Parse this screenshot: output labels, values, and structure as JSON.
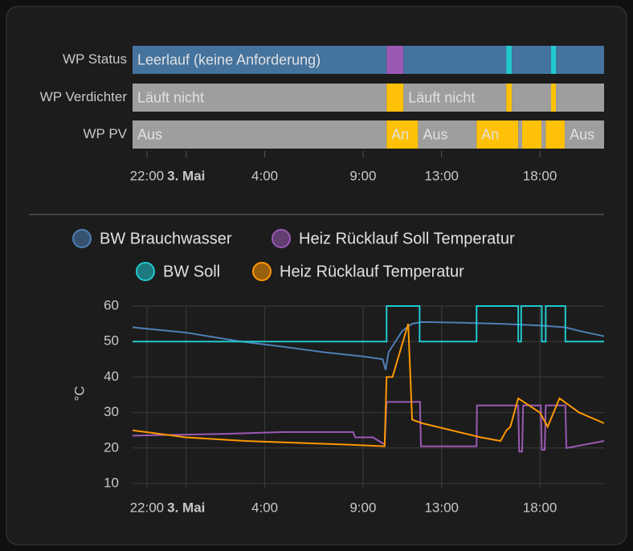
{
  "timeline": {
    "xlim": [
      -2.73,
      21.27
    ],
    "xticks": [
      {
        "value": -2,
        "label": "22:00"
      },
      {
        "value": 0,
        "label": "3. Mai"
      },
      {
        "value": 4,
        "label": "4:00"
      },
      {
        "value": 9,
        "label": "9:00"
      },
      {
        "value": 13,
        "label": "13:00"
      },
      {
        "value": 18,
        "label": "18:00"
      }
    ],
    "rows": [
      {
        "name": "WP Status",
        "segments": [
          {
            "start": -2.73,
            "end": 10.2,
            "label": "Leerlauf (keine Anforderung)",
            "color": "#44739e"
          },
          {
            "start": 10.2,
            "end": 11.06,
            "label": null,
            "color": "#9b59b6"
          },
          {
            "start": 11.06,
            "end": 16.29,
            "label": null,
            "color": "#44739e"
          },
          {
            "start": 16.29,
            "end": 16.57,
            "label": null,
            "color": "#20c9cf"
          },
          {
            "start": 16.57,
            "end": 18.57,
            "label": null,
            "color": "#44739e"
          },
          {
            "start": 18.57,
            "end": 18.82,
            "label": null,
            "color": "#20c9cf"
          },
          {
            "start": 18.82,
            "end": 21.27,
            "label": null,
            "color": "#44739e"
          }
        ]
      },
      {
        "name": "WP Verdichter",
        "segments": [
          {
            "start": -2.73,
            "end": 10.2,
            "label": "Läuft nicht",
            "color": "#9e9e9e"
          },
          {
            "start": 10.2,
            "end": 11.06,
            "label": null,
            "color": "#ffc107"
          },
          {
            "start": 11.06,
            "end": 16.29,
            "label": "Läuft nicht",
            "color": "#9e9e9e"
          },
          {
            "start": 16.29,
            "end": 16.57,
            "label": null,
            "color": "#ffc107"
          },
          {
            "start": 16.57,
            "end": 18.57,
            "label": null,
            "color": "#9e9e9e"
          },
          {
            "start": 18.57,
            "end": 18.82,
            "label": null,
            "color": "#ffc107"
          },
          {
            "start": 18.82,
            "end": 21.27,
            "label": null,
            "color": "#9e9e9e"
          }
        ]
      },
      {
        "name": "WP PV",
        "segments": [
          {
            "start": -2.73,
            "end": 10.2,
            "label": "Aus",
            "color": "#9e9e9e"
          },
          {
            "start": 10.2,
            "end": 11.8,
            "label": "An",
            "color": "#ffc107"
          },
          {
            "start": 11.8,
            "end": 14.78,
            "label": "Aus",
            "color": "#9e9e9e"
          },
          {
            "start": 14.78,
            "end": 16.9,
            "label": "An",
            "color": "#ffc107"
          },
          {
            "start": 16.9,
            "end": 17.1,
            "label": null,
            "color": "#9e9e9e"
          },
          {
            "start": 17.1,
            "end": 18.08,
            "label": null,
            "color": "#ffc107"
          },
          {
            "start": 18.08,
            "end": 18.3,
            "label": null,
            "color": "#9e9e9e"
          },
          {
            "start": 18.3,
            "end": 19.27,
            "label": null,
            "color": "#ffc107"
          },
          {
            "start": 19.27,
            "end": 21.27,
            "label": "Aus",
            "color": "#9e9e9e"
          }
        ]
      }
    ]
  },
  "chart_data": {
    "type": "line",
    "ylabel": "°C",
    "xlim": [
      -2.73,
      21.27
    ],
    "xticks": [
      {
        "value": -2,
        "label": "22:00"
      },
      {
        "value": 0,
        "label": "3. Mai"
      },
      {
        "value": 4,
        "label": "4:00"
      },
      {
        "value": 9,
        "label": "9:00"
      },
      {
        "value": 13,
        "label": "13:00"
      },
      {
        "value": 18,
        "label": "18:00"
      }
    ],
    "ylim": [
      10,
      60
    ],
    "yticks": [
      10,
      20,
      30,
      40,
      50,
      60
    ],
    "grid": true,
    "series": [
      {
        "name": "BW Brauchwasser",
        "color": "#4e7fb5",
        "x": [
          -2.73,
          0,
          2.8,
          5,
          7,
          9,
          10,
          10.15,
          10.3,
          11,
          11.5,
          12,
          14,
          16,
          18,
          19.3,
          20,
          21.27
        ],
        "values": [
          54,
          52.5,
          50,
          48.5,
          47,
          45.8,
          45,
          42,
          47,
          53,
          55,
          55.5,
          55.3,
          55,
          54.5,
          54,
          53,
          51.5
        ]
      },
      {
        "name": "Heiz Rücklauf Soll Temperatur",
        "color": "#9b59b6",
        "x": [
          -2.73,
          2,
          5,
          8.5,
          8.6,
          9.5,
          10.1,
          10.2,
          11.9,
          11.95,
          14.78,
          14.8,
          16.9,
          16.95,
          17.1,
          17.15,
          18.05,
          18.1,
          18.25,
          18.3,
          19.3,
          19.35,
          21.27
        ],
        "values": [
          23.5,
          24,
          24.5,
          24.5,
          23,
          23,
          21,
          33,
          33,
          20.5,
          20.5,
          32,
          32,
          19,
          19,
          32,
          32,
          19.5,
          19.5,
          32,
          32,
          20,
          22
        ]
      },
      {
        "name": "BW Soll",
        "color": "#20c9cf",
        "x": [
          -2.73,
          10.2,
          10.2,
          11.88,
          11.88,
          14.78,
          14.78,
          16.9,
          16.9,
          17.05,
          17.05,
          18.1,
          18.1,
          18.3,
          18.3,
          19.3,
          19.3,
          21.27
        ],
        "values": [
          50,
          50,
          60,
          60,
          50,
          50,
          60,
          60,
          50,
          50,
          60,
          60,
          50,
          50,
          60,
          60,
          50,
          50
        ]
      },
      {
        "name": "Heiz Rücklauf Temperatur",
        "color": "#ff9800",
        "x": [
          -2.73,
          0,
          3,
          8,
          10.1,
          10.2,
          10.5,
          11.3,
          11.5,
          12,
          15,
          16,
          16.3,
          16.5,
          16.9,
          18,
          18.4,
          19,
          20,
          21.27
        ],
        "values": [
          25,
          23,
          22,
          21,
          20.5,
          40,
          40,
          55,
          28,
          27,
          23,
          22,
          25,
          26,
          34,
          30,
          26,
          34,
          30,
          27
        ]
      }
    ]
  }
}
